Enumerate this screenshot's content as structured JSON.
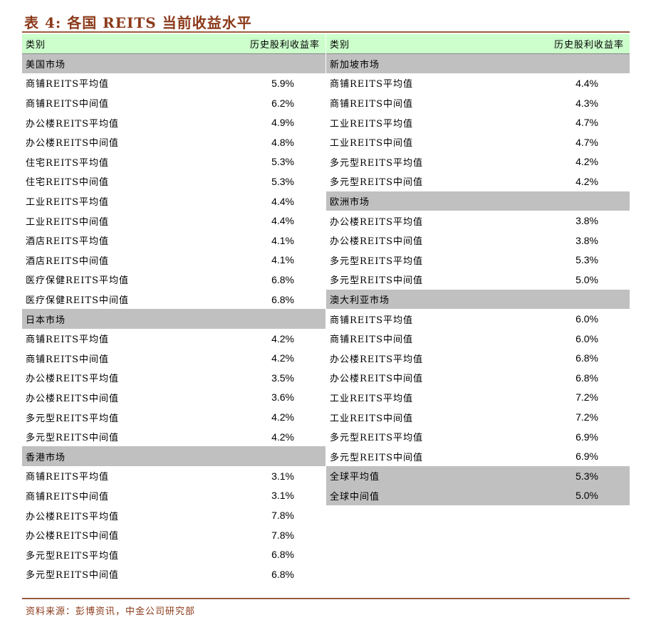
{
  "title": "表 4:  各国 REITS 当前收益水平",
  "source": "资料来源：彭博资讯，中金公司研究部",
  "colors": {
    "title": "#8B3A1A",
    "header_bg": "#CCFFCC",
    "section_bg": "#C0C0C0"
  },
  "header": {
    "category": "类别",
    "yield": "历史股利收益率"
  },
  "left": [
    {
      "type": "section",
      "label": "美国市场"
    },
    {
      "label": "商铺REITS平均值",
      "value": "5.9%"
    },
    {
      "label": "商铺REITS中间值",
      "value": "6.2%"
    },
    {
      "label": "办公楼REITS平均值",
      "value": "4.9%"
    },
    {
      "label": "办公楼REITS中间值",
      "value": "4.8%"
    },
    {
      "label": "住宅REITS平均值",
      "value": "5.3%"
    },
    {
      "label": "住宅REITS中间值",
      "value": "5.3%"
    },
    {
      "label": "工业REITS平均值",
      "value": "4.4%"
    },
    {
      "label": "工业REITS中间值",
      "value": "4.4%"
    },
    {
      "label": "酒店REITS平均值",
      "value": "4.1%"
    },
    {
      "label": "酒店REITS中间值",
      "value": "4.1%"
    },
    {
      "label": "医疗保健REITS平均值",
      "value": "6.8%"
    },
    {
      "label": "医疗保健REITS中间值",
      "value": "6.8%"
    },
    {
      "type": "section",
      "label": "日本市场"
    },
    {
      "label": "商铺REITS平均值",
      "value": "4.2%"
    },
    {
      "label": "商铺REITS中间值",
      "value": "4.2%"
    },
    {
      "label": "办公楼REITS平均值",
      "value": "3.5%"
    },
    {
      "label": "办公楼REITS中间值",
      "value": "3.6%"
    },
    {
      "label": "多元型REITS平均值",
      "value": "4.2%"
    },
    {
      "label": "多元型REITS中间值",
      "value": "4.2%"
    },
    {
      "type": "section",
      "label": "香港市场"
    },
    {
      "label": "商铺REITS平均值",
      "value": "3.1%"
    },
    {
      "label": "商铺REITS中间值",
      "value": "3.1%"
    },
    {
      "label": "办公楼REITS平均值",
      "value": "7.8%"
    },
    {
      "label": "办公楼REITS中间值",
      "value": "7.8%"
    },
    {
      "label": "多元型REITS平均值",
      "value": "6.8%"
    },
    {
      "label": "多元型REITS中间值",
      "value": "6.8%"
    }
  ],
  "right": [
    {
      "type": "section",
      "label": "新加坡市场"
    },
    {
      "label": "商铺REITS平均值",
      "value": "4.4%"
    },
    {
      "label": "商铺REITS中间值",
      "value": "4.3%"
    },
    {
      "label": "工业REITS平均值",
      "value": "4.7%"
    },
    {
      "label": "工业REITS中间值",
      "value": "4.7%"
    },
    {
      "label": "多元型REITS平均值",
      "value": "4.2%"
    },
    {
      "label": "多元型REITS中间值",
      "value": "4.2%"
    },
    {
      "type": "section",
      "label": "欧洲市场"
    },
    {
      "label": "办公楼REITS平均值",
      "value": "3.8%"
    },
    {
      "label": "办公楼REITS中间值",
      "value": "3.8%"
    },
    {
      "label": "多元型REITS平均值",
      "value": "5.3%"
    },
    {
      "label": "多元型REITS中间值",
      "value": "5.0%"
    },
    {
      "type": "section",
      "label": "澳大利亚市场"
    },
    {
      "label": "商铺REITS平均值",
      "value": "6.0%"
    },
    {
      "label": "商铺REITS中间值",
      "value": "6.0%"
    },
    {
      "label": "办公楼REITS平均值",
      "value": "6.8%"
    },
    {
      "label": "办公楼REITS中间值",
      "value": "6.8%"
    },
    {
      "label": "工业REITS平均值",
      "value": "7.2%"
    },
    {
      "label": "工业REITS中间值",
      "value": "7.2%"
    },
    {
      "label": "多元型REITS平均值",
      "value": "6.9%"
    },
    {
      "label": "多元型REITS中间值",
      "value": "6.9%"
    },
    {
      "type": "total",
      "label": "全球平均值",
      "value": "5.3%"
    },
    {
      "type": "total",
      "label": "全球中间值",
      "value": "5.0%"
    }
  ]
}
